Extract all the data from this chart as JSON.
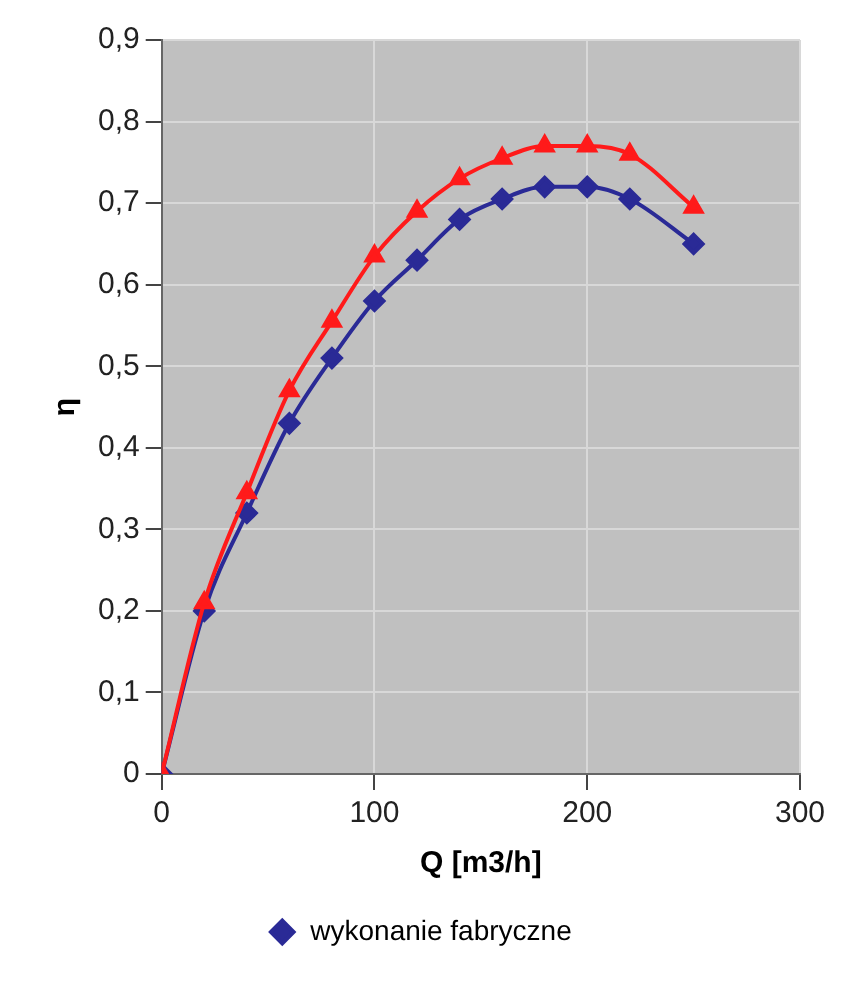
{
  "chart_data": {
    "type": "line",
    "xlabel": "Q [m3/h]",
    "ylabel": "η",
    "x": [
      0,
      20,
      40,
      60,
      80,
      100,
      120,
      140,
      160,
      180,
      200,
      220,
      250
    ],
    "series": [
      {
        "name": "wykonanie fabryczne",
        "color": "#2a2a96",
        "marker": "diamond",
        "values": [
          0,
          0.2,
          0.32,
          0.43,
          0.51,
          0.58,
          0.63,
          0.68,
          0.705,
          0.72,
          0.72,
          0.705,
          0.65
        ]
      },
      {
        "color": "#ff1a1a",
        "marker": "triangle",
        "values": [
          0,
          0.21,
          0.345,
          0.47,
          0.555,
          0.635,
          0.69,
          0.73,
          0.755,
          0.77,
          0.77,
          0.76,
          0.695
        ]
      }
    ],
    "xlim": [
      0,
      300
    ],
    "xticks": [
      0,
      100,
      200,
      300
    ],
    "ylim": [
      0,
      0.9
    ],
    "yticks": [
      0,
      {
        "value": 0.1,
        "label": "0,1"
      },
      {
        "value": 0.2,
        "label": "0,2"
      },
      {
        "value": 0.3,
        "label": "0,3"
      },
      {
        "value": 0.4,
        "label": "0,4"
      },
      {
        "value": 0.5,
        "label": "0,5"
      },
      {
        "value": 0.6,
        "label": "0,6"
      },
      {
        "value": 0.7,
        "label": "0,7"
      },
      {
        "value": 0.8,
        "label": "0,8"
      },
      {
        "value": 0.9,
        "label": "0,9"
      }
    ],
    "grid": true,
    "legend": "bottom",
    "line_style": "solid"
  }
}
